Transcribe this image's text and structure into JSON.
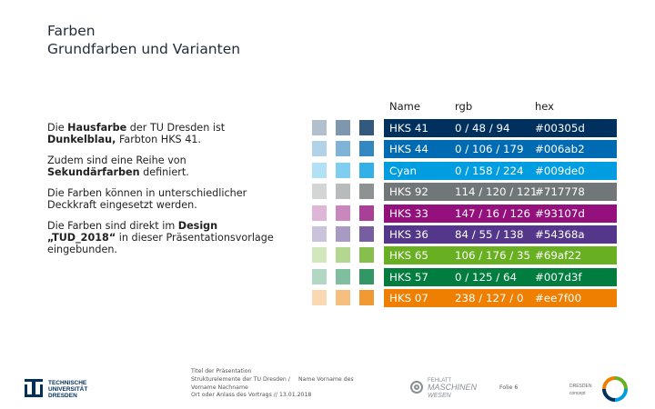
{
  "slide": {
    "title": "Farben",
    "subtitle": "Grundfarben und Varianten"
  },
  "intro": {
    "p1_a": "Die ",
    "p1_b": "Hausfarbe",
    "p1_c": " der TU Dresden ist ",
    "p1_d": "Dunkelblau,",
    "p1_e": " Farbton HKS 41.",
    "p2_a": "Zudem sind eine Reihe von ",
    "p2_b": "Sekundärfarben",
    "p2_c": " definiert.",
    "p3": "Die Farben können in   unterschiedlicher Deckkraft eingesetzt werden.",
    "p4_a": "Die Farben sind   direkt   im ",
    "p4_b": "Design „TUD_2018“",
    "p4_c": " in dieser Präsentationsvorlage eingebunden."
  },
  "table": {
    "headers": {
      "name": "Name",
      "rgb": "rgb",
      "hex": "hex"
    },
    "rows": [
      {
        "name": "HKS 41",
        "rgb": "0 / 48 / 94",
        "hex": "#00305d",
        "color": "#00305d",
        "text_color": "#ffffff"
      },
      {
        "name": "HKS 44",
        "rgb": "0 / 106 / 179",
        "hex": "#006ab2",
        "color": "#006ab2",
        "text_color": "#ffffff"
      },
      {
        "name": "Cyan",
        "rgb": "0 / 158 / 224",
        "hex": "#009de0",
        "color": "#009de0",
        "text_color": "#ffffff"
      },
      {
        "name": "HKS 92",
        "rgb": "114 / 120 / 121",
        "hex": "#717778",
        "color": "#717778",
        "text_color": "#ffffff"
      },
      {
        "name": "HKS 33",
        "rgb": "147 / 16 / 126",
        "hex": "#93107d",
        "color": "#93107d",
        "text_color": "#ffffff"
      },
      {
        "name": "HKS 36",
        "rgb": "84 / 55 / 138",
        "hex": "#54368a",
        "color": "#54368a",
        "text_color": "#ffffff"
      },
      {
        "name": "HKS 65",
        "rgb": "106 / 176 / 35",
        "hex": "#69af22",
        "color": "#69af22",
        "text_color": "#ffffff"
      },
      {
        "name": "HKS 57",
        "rgb": "0 / 125 / 64",
        "hex": "#007d3f",
        "color": "#007d3f",
        "text_color": "#ffffff"
      },
      {
        "name": "HKS 07",
        "rgb": "238 / 127 / 0",
        "hex": "#ee7f00",
        "color": "#ee7f00",
        "text_color": "#ffffff"
      }
    ],
    "swatch_opacities": [
      0.3,
      0.5,
      0.8
    ]
  },
  "footer": {
    "tud_logo_lines": [
      "TECHNISCHE",
      "UNIVERSITÄT",
      "DRESDEN"
    ],
    "line1": "Titel der Präsentation",
    "line2": "Strukturelemente der TU Dresden /",
    "line3": "Vorname Nachname",
    "line4": "Ort oder Anlass des Vortrags // 13.01.2018",
    "name": "Name Vorname des",
    "page": "Folie 6",
    "fmw_lines": [
      "FEHLATT",
      "MASCHINEN",
      "WESEN"
    ],
    "dresden_lines": [
      "DRESDEN",
      "concept"
    ]
  }
}
